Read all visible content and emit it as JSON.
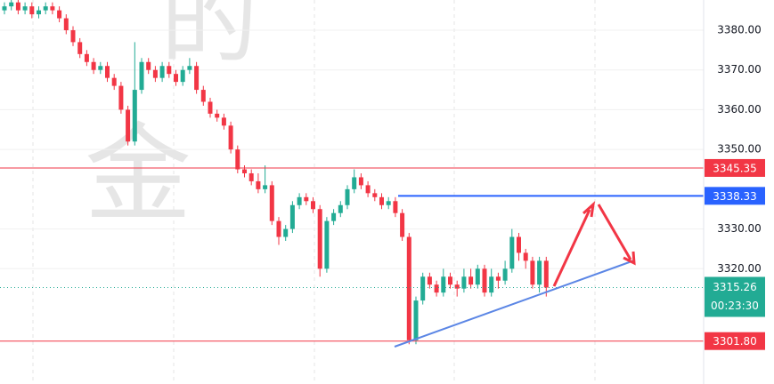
{
  "chart_data": {
    "type": "candlestick",
    "watermark": [
      "的",
      "金"
    ],
    "open": [
      3385,
      3386,
      3387,
      3385,
      3386,
      3384,
      3385,
      3386,
      3385,
      3383,
      3380,
      3377,
      3374,
      3372,
      3370,
      3371,
      3368,
      3366,
      3360,
      3352,
      3365,
      3372,
      3370,
      3368,
      3371,
      3369,
      3367,
      3370,
      3371,
      3365,
      3362,
      3359,
      3358,
      3356,
      3350,
      3345,
      3344,
      3342,
      3340,
      3341,
      3332,
      3328,
      3330,
      3336,
      3338,
      3337,
      3335,
      3320,
      3332,
      3334,
      3336,
      3340,
      3343,
      3341,
      3339,
      3338,
      3336,
      3337,
      3334,
      3328,
      3302,
      3312,
      3318,
      3316,
      3314,
      3318,
      3316,
      3315,
      3318,
      3316,
      3320,
      3314,
      3318,
      3317,
      3320,
      3328,
      3324,
      3322,
      3316,
      3322
    ],
    "high": [
      3387,
      3388,
      3388,
      3387,
      3387,
      3386,
      3387,
      3387,
      3386,
      3384,
      3381,
      3378,
      3375,
      3373,
      3372,
      3372,
      3369,
      3367,
      3361,
      3377,
      3373,
      3373,
      3371,
      3372,
      3372,
      3370,
      3371,
      3373,
      3372,
      3366,
      3363,
      3360,
      3359,
      3357,
      3351,
      3346,
      3345,
      3344,
      3346,
      3342,
      3333,
      3331,
      3337,
      3339,
      3339,
      3338,
      3336,
      3333,
      3335,
      3337,
      3341,
      3345,
      3344,
      3342,
      3340,
      3339,
      3338,
      3338,
      3335,
      3329,
      3313,
      3319,
      3319,
      3317,
      3320,
      3319,
      3317,
      3320,
      3320,
      3321,
      3321,
      3320,
      3319,
      3322,
      3330,
      3329,
      3325,
      3323,
      3323,
      3323
    ],
    "low": [
      3384,
      3385,
      3384,
      3384,
      3383,
      3383,
      3384,
      3384,
      3382,
      3379,
      3376,
      3373,
      3371,
      3369,
      3369,
      3367,
      3365,
      3359,
      3351,
      3351,
      3364,
      3369,
      3367,
      3367,
      3368,
      3366,
      3366,
      3369,
      3364,
      3361,
      3358,
      3357,
      3355,
      3349,
      3344,
      3343,
      3341,
      3339,
      3339,
      3331,
      3326,
      3327,
      3329,
      3335,
      3336,
      3334,
      3318,
      3319,
      3331,
      3333,
      3335,
      3339,
      3340,
      3338,
      3337,
      3335,
      3335,
      3333,
      3327,
      3301,
      3301,
      3311,
      3315,
      3313,
      3313,
      3315,
      3313,
      3314,
      3315,
      3315,
      3313,
      3313,
      3315,
      3316,
      3319,
      3322,
      3320,
      3315,
      3314,
      3313
    ],
    "close": [
      3386,
      3387,
      3385,
      3386,
      3384,
      3385,
      3386,
      3385,
      3383,
      3380,
      3377,
      3374,
      3372,
      3370,
      3371,
      3368,
      3366,
      3360,
      3352,
      3365,
      3372,
      3370,
      3368,
      3371,
      3369,
      3367,
      3370,
      3371,
      3365,
      3362,
      3359,
      3358,
      3356,
      3350,
      3345,
      3344,
      3342,
      3340,
      3341,
      3332,
      3328,
      3330,
      3336,
      3338,
      3337,
      3335,
      3320,
      3332,
      3334,
      3336,
      3340,
      3343,
      3341,
      3339,
      3338,
      3336,
      3337,
      3334,
      3328,
      3302,
      3312,
      3318,
      3316,
      3314,
      3318,
      3316,
      3315,
      3318,
      3316,
      3320,
      3314,
      3318,
      3317,
      3320,
      3328,
      3324,
      3322,
      3316,
      3322,
      3315.26
    ],
    "up_color": "#22ab94",
    "down_color": "#f23645",
    "ylim": [
      3291,
      3387.6
    ],
    "yticks": [
      {
        "value": 3320,
        "label": "3320.00"
      },
      {
        "value": 3330,
        "label": "3330.00"
      },
      {
        "value": 3350,
        "label": "3350.00"
      },
      {
        "value": 3360,
        "label": "3360.00"
      },
      {
        "value": 3370,
        "label": "3370.00"
      },
      {
        "value": 3380,
        "label": "3380.00"
      }
    ],
    "levels": [
      {
        "value": 3345.35,
        "color": "#f23645"
      },
      {
        "value": 3338.33,
        "color": "#2962ff"
      },
      {
        "value": 3301.8,
        "label": "3301.80",
        "color": "#f23645"
      }
    ],
    "countdown": "00:23:30"
  }
}
